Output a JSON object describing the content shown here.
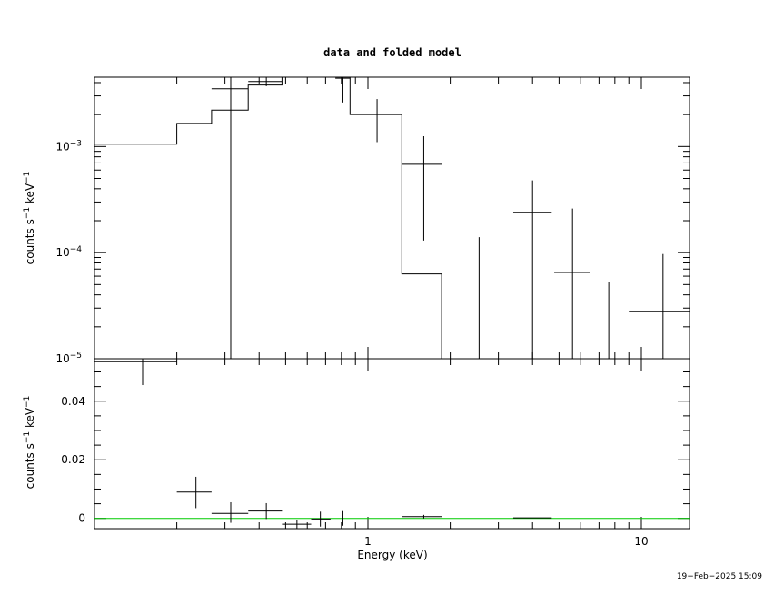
{
  "chart_data": [
    {
      "panel": "top",
      "type": "line",
      "title": "data and folded model",
      "xlabel": "",
      "ylabel": "counts s^-1 keV^-1",
      "x_scale": "log",
      "y_scale": "log",
      "xlim": [
        0.1,
        15
      ],
      "ylim": [
        1e-05,
        0.0045
      ],
      "y_tick_labels": [
        {
          "v": 1e-05,
          "base": "10",
          "exp": "−5"
        },
        {
          "v": 0.0001,
          "base": "10",
          "exp": "−4"
        },
        {
          "v": 0.001,
          "base": "10",
          "exp": "−3"
        }
      ],
      "data_points": [
        {
          "x": 0.315,
          "xlo": 0.268,
          "xhi": 0.365,
          "y": 0.0035,
          "ylo": 1e-05,
          "yhi": 0.0045
        },
        {
          "x": 0.425,
          "xlo": 0.365,
          "xhi": 0.485,
          "y": 0.0041,
          "ylo": 0.0037,
          "yhi": 0.0045
        },
        {
          "x": 0.81,
          "xlo": 0.76,
          "xhi": 0.86,
          "y": 0.0044,
          "ylo": 0.0026,
          "yhi": 0.0045
        },
        {
          "x": 1.08,
          "xlo": 1.08,
          "xhi": 1.08,
          "y": 0.0019,
          "ylo": 0.0011,
          "yhi": 0.0028
        },
        {
          "x": 1.6,
          "xlo": 1.33,
          "xhi": 1.86,
          "y": 0.00068,
          "ylo": 0.00013,
          "yhi": 0.00125
        },
        {
          "x": 2.55,
          "xlo": 2.55,
          "xhi": 2.55,
          "y": 1e-05,
          "ylo": 1e-05,
          "yhi": 0.00014
        },
        {
          "x": 4.0,
          "xlo": 3.4,
          "xhi": 4.7,
          "y": 0.00024,
          "ylo": 1e-05,
          "yhi": 0.00048
        },
        {
          "x": 5.6,
          "xlo": 4.8,
          "xhi": 6.5,
          "y": 6.5e-05,
          "ylo": 1e-05,
          "yhi": 0.00026
        },
        {
          "x": 7.6,
          "xlo": 7.6,
          "xhi": 7.6,
          "y": 1e-05,
          "ylo": 1e-05,
          "yhi": 5.3e-05
        },
        {
          "x": 12.0,
          "xlo": 9.0,
          "xhi": 15.0,
          "y": 2.8e-05,
          "ylo": 1e-05,
          "yhi": 9.7e-05
        }
      ],
      "model_steps": [
        {
          "xlo": 0.1,
          "xhi": 0.2,
          "y": 0.00105
        },
        {
          "xlo": 0.2,
          "xhi": 0.268,
          "y": 0.00165
        },
        {
          "xlo": 0.268,
          "xhi": 0.365,
          "y": 0.0022
        },
        {
          "xlo": 0.365,
          "xhi": 0.485,
          "y": 0.0038
        },
        {
          "xlo": 0.485,
          "xhi": 0.86,
          "y": 0.0045
        },
        {
          "xlo": 0.86,
          "xhi": 1.33,
          "y": 0.002
        },
        {
          "xlo": 1.33,
          "xhi": 1.86,
          "y": 6.3e-05
        }
      ]
    },
    {
      "panel": "bottom",
      "type": "scatter",
      "title": "",
      "xlabel": "Energy (keV)",
      "ylabel": "counts s^-1 keV^-1",
      "x_scale": "log",
      "y_scale": "linear",
      "xlim": [
        0.1,
        15
      ],
      "ylim": [
        -0.0035,
        0.0545
      ],
      "x_tick_labels": [
        {
          "v": 1,
          "label": "1"
        },
        {
          "v": 10,
          "label": "10"
        }
      ],
      "y_tick_labels": [
        {
          "v": 0,
          "label": "0"
        },
        {
          "v": 0.02,
          "label": "0.02"
        },
        {
          "v": 0.04,
          "label": "0.04"
        }
      ],
      "zero_line_color": "#00cc00",
      "data_points": [
        {
          "x": 0.15,
          "xlo": 0.1,
          "xhi": 0.2,
          "y": 0.0535,
          "ylo": 0.0455,
          "yhi": 0.0545
        },
        {
          "x": 0.235,
          "xlo": 0.2,
          "xhi": 0.268,
          "y": 0.009,
          "ylo": 0.0035,
          "yhi": 0.0142
        },
        {
          "x": 0.315,
          "xlo": 0.268,
          "xhi": 0.365,
          "y": 0.0017,
          "ylo": -0.0015,
          "yhi": 0.0055
        },
        {
          "x": 0.425,
          "xlo": 0.365,
          "xhi": 0.485,
          "y": 0.0025,
          "ylo": -0.0002,
          "yhi": 0.0052
        },
        {
          "x": 0.55,
          "xlo": 0.485,
          "xhi": 0.62,
          "y": -0.002,
          "ylo": -0.0035,
          "yhi": -0.0005
        },
        {
          "x": 0.67,
          "xlo": 0.62,
          "xhi": 0.73,
          "y": -0.0002,
          "ylo": -0.0028,
          "yhi": 0.0023
        },
        {
          "x": 0.81,
          "xlo": 0.81,
          "xhi": 0.81,
          "y": -0.0005,
          "ylo": -0.0025,
          "yhi": 0.0025
        },
        {
          "x": 1.6,
          "xlo": 1.33,
          "xhi": 1.86,
          "y": 0.0006,
          "ylo": 0.0,
          "yhi": 0.0012
        },
        {
          "x": 4.0,
          "xlo": 3.4,
          "xhi": 4.7,
          "y": 0.0002,
          "ylo": 0.0002,
          "yhi": 0.0002
        }
      ]
    }
  ],
  "timestamp": "19−Feb−2025 15:09"
}
